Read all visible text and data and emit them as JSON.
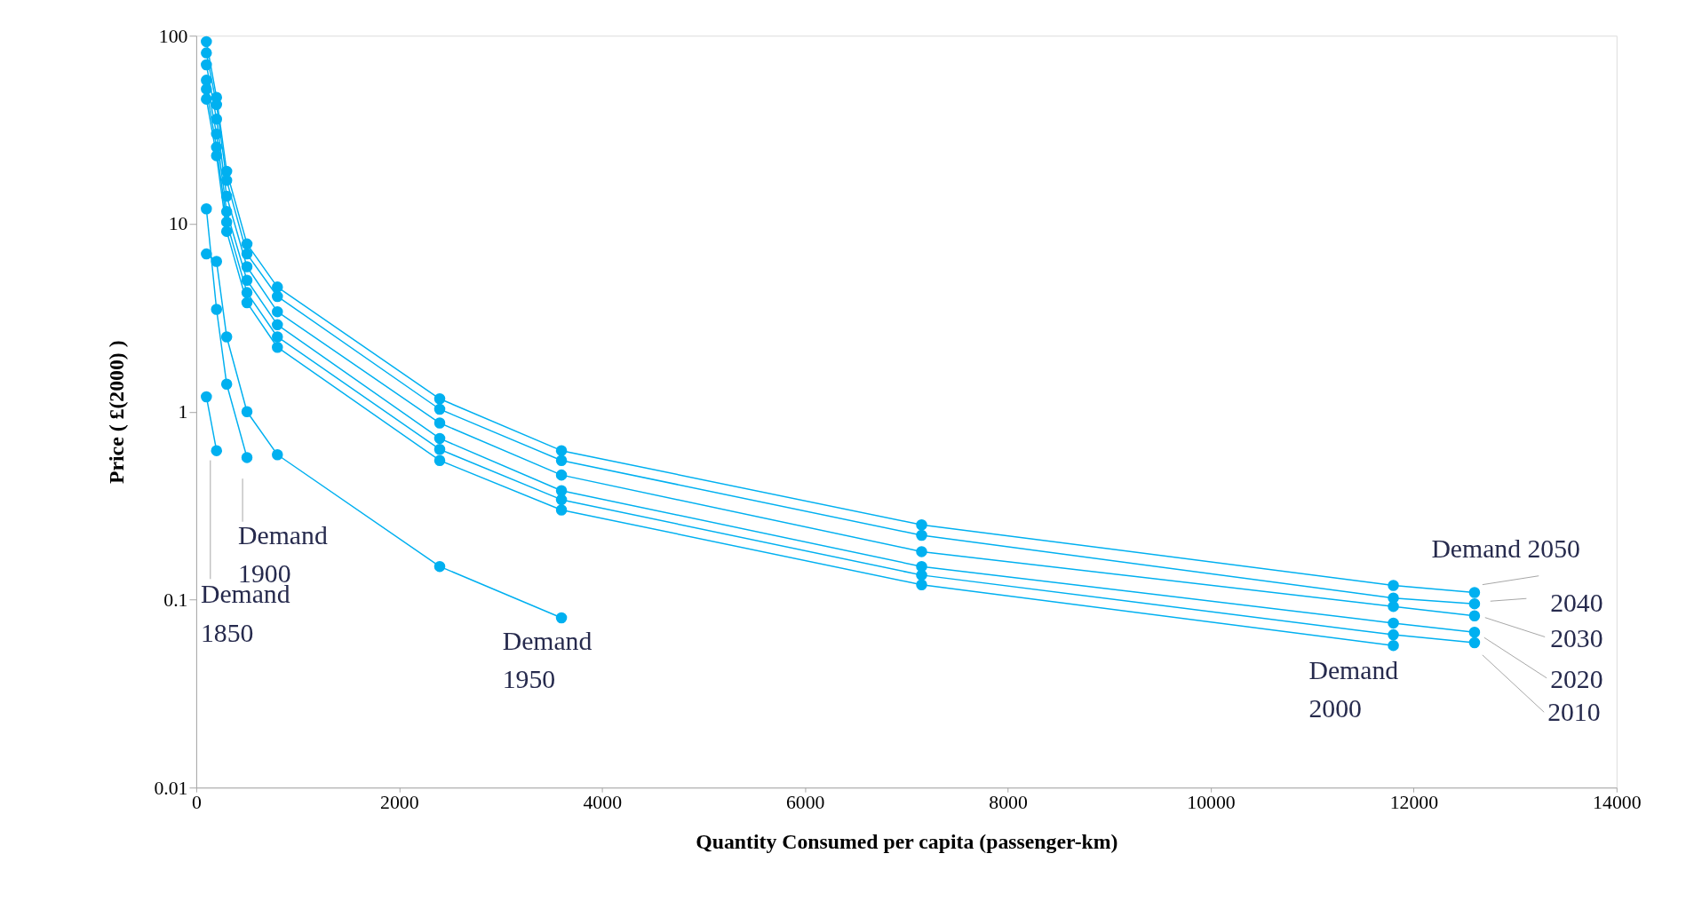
{
  "chart_data": {
    "type": "line",
    "xlabel": "Quantity Consumed per capita (passenger-km)",
    "ylabel": "Price ( £(2000) )",
    "x": [
      100,
      200,
      300,
      500,
      800,
      2400,
      3600,
      7150,
      11800,
      12600
    ],
    "series": [
      {
        "color": "#00b0f0",
        "values": [
          93,
          47,
          19,
          7.8,
          4.6,
          1.17,
          0.62,
          0.25,
          0.119,
          0.109
        ]
      },
      {
        "color": "#00b0f0",
        "values": [
          81,
          43,
          17,
          6.9,
          4.1,
          1.03,
          0.55,
          0.22,
          0.102,
          0.095
        ]
      },
      {
        "color": "#00b0f0",
        "values": [
          70,
          36,
          14,
          5.9,
          3.4,
          0.87,
          0.46,
          0.18,
          0.092,
          0.082
        ]
      },
      {
        "color": "#00b0f0",
        "values": [
          58,
          30,
          11.6,
          5.0,
          2.9,
          0.72,
          0.38,
          0.15,
          0.075,
          0.067
        ]
      },
      {
        "color": "#00b0f0",
        "values": [
          52,
          25.5,
          10.2,
          4.3,
          2.5,
          0.63,
          0.34,
          0.135,
          0.065,
          0.059
        ]
      },
      {
        "color": "#00b0f0",
        "values": [
          46,
          23,
          9.1,
          3.8,
          2.2,
          0.55,
          0.3,
          0.12,
          0.057,
          null
        ]
      },
      {
        "color": "#00b0f0",
        "values": [
          6.9,
          6.3,
          2.5,
          1.0,
          0.59,
          0.15,
          0.08,
          null,
          null,
          null
        ]
      },
      {
        "color": "#00b0f0",
        "values": [
          12,
          3.5,
          1.4,
          0.57,
          null,
          null,
          null,
          null,
          null,
          null
        ]
      },
      {
        "color": "#00b0f0",
        "values": [
          1.2,
          0.62,
          null,
          null,
          null,
          null,
          null,
          null,
          null,
          null
        ]
      }
    ],
    "annotations": [
      "Demand\n1850",
      {
        "text": "Demand\n1900",
        "x": 500,
        "y": 0.57
      },
      {
        "text": "Demand\n1950",
        "x": 3600,
        "y": 0.08
      },
      {
        "text": "Demand\n2000",
        "x": 11800,
        "y": 0.057
      },
      {
        "text": "Demand 2050",
        "x": 12600,
        "y": 0.109
      },
      {
        "text": "2040",
        "x": 12600,
        "y": 0.095
      },
      {
        "text": "2030",
        "x": 12600,
        "y": 0.082
      },
      "2020",
      "2010"
    ],
    "log": "y",
    "xlim": [
      0,
      14000
    ],
    "xticks": [
      0,
      2000,
      4000,
      6000,
      8000,
      10000,
      12000,
      14000
    ],
    "ylim": [
      0.01,
      100
    ],
    "yticks": [
      0.01,
      0.1,
      1,
      10,
      100
    ],
    "grid": false,
    "legend": false,
    "marker": "circle",
    "line_style": "solid"
  }
}
